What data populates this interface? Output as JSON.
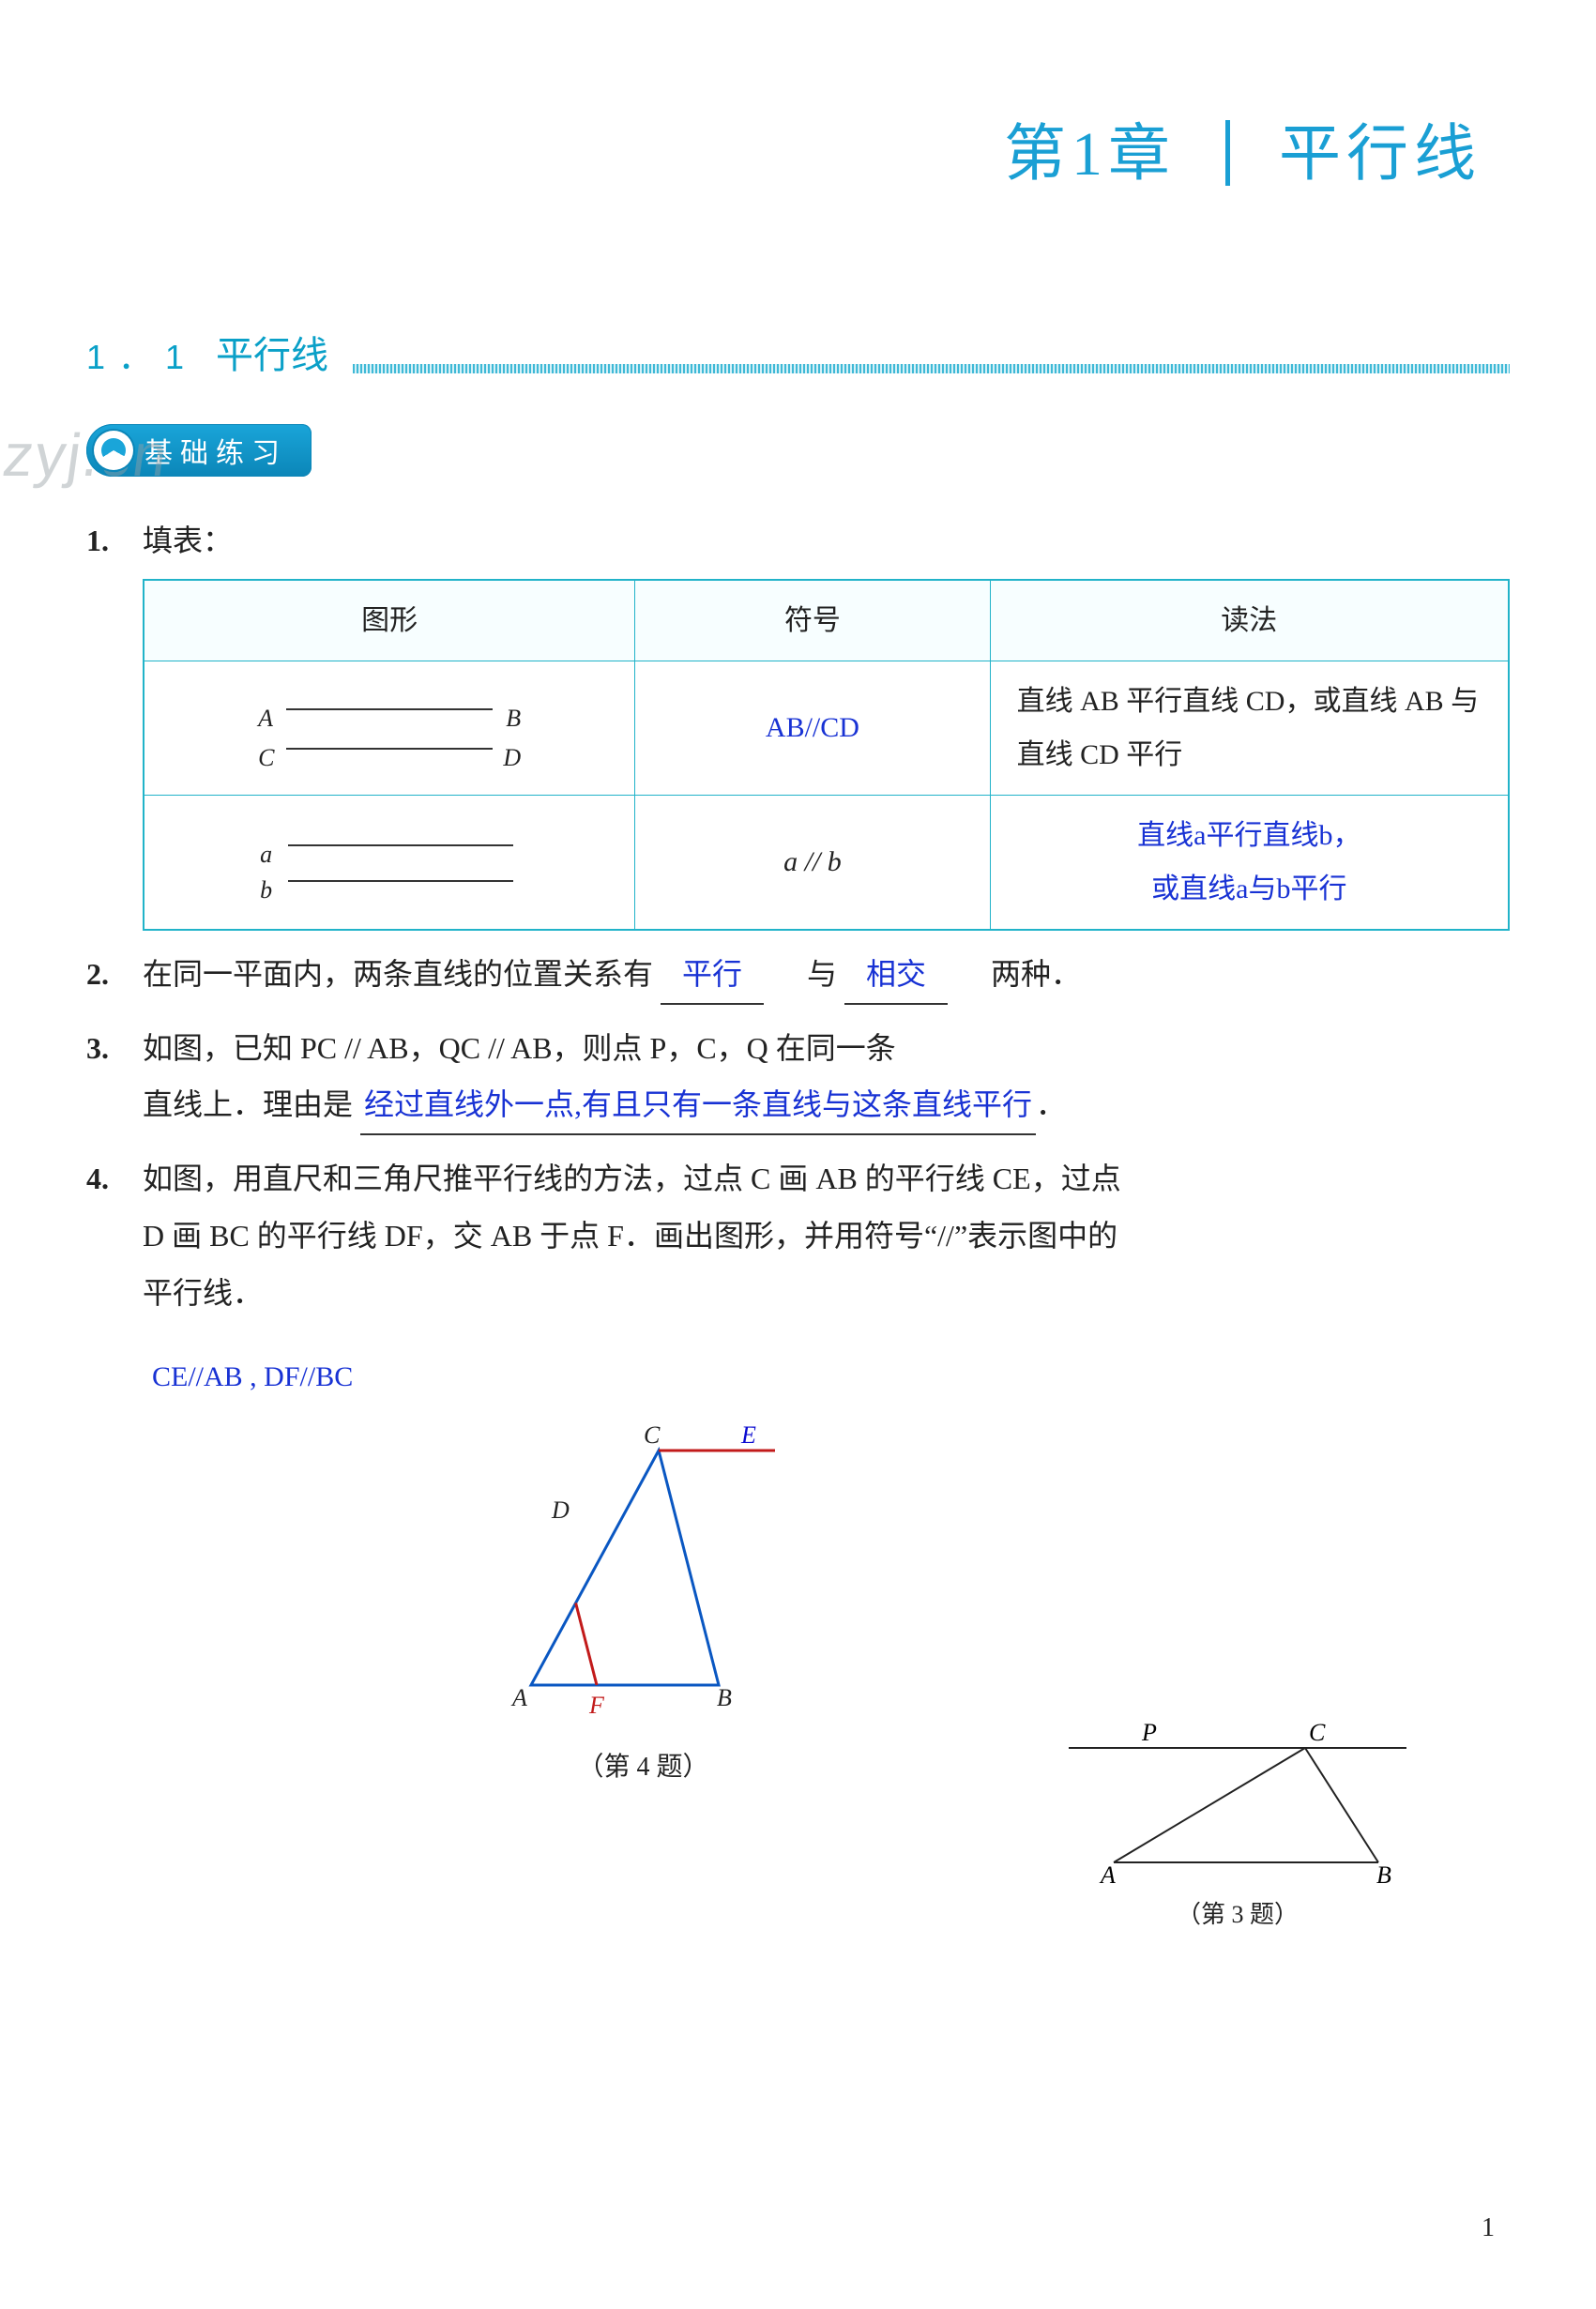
{
  "chapter": {
    "left": "第1章",
    "right": "平行线"
  },
  "section": {
    "num": "1．1",
    "title": "平行线"
  },
  "badge": {
    "label": "基础练习"
  },
  "watermark": "zyj.cn",
  "page_number": "1",
  "q1": {
    "num": "1.",
    "lead": "填表：",
    "table": {
      "headers": [
        "图形",
        "符号",
        "读法"
      ],
      "row1": {
        "fig": {
          "A": "A",
          "B": "B",
          "C": "C",
          "D": "D"
        },
        "symbol_answer": "AB//CD",
        "reading": "直线 AB 平行直线 CD，或直线 AB 与直线 CD 平行"
      },
      "row2": {
        "fig": {
          "a": "a",
          "b": "b"
        },
        "symbol": "a // b",
        "reading_answer_l1": "直线a平行直线b，",
        "reading_answer_l2": "或直线a与b平行"
      }
    }
  },
  "q2": {
    "num": "2.",
    "pre": "在同一平面内，两条直线的位置关系有",
    "blank1": "平行",
    "mid": "与",
    "blank2": "相交",
    "post": "两种．"
  },
  "q3": {
    "num": "3.",
    "line1": "如图，已知 PC // AB，QC // AB，则点 P，C，Q 在同一条",
    "line2_pre": "直线上．理由是",
    "blank": "经过直线外一点,有且只有一条直线与这条直线平行",
    "figure": {
      "labels": {
        "P": "P",
        "C": "C",
        "A": "A",
        "B": "B"
      },
      "caption": "（第 3 题）",
      "colors": {
        "stroke": "#222222"
      }
    }
  },
  "q4": {
    "num": "4.",
    "text": "如图，用直尺和三角尺推平行线的方法，过点 C 画 AB 的平行线 CE，过点 D 画 BC 的平行线 DF，交 AB 于点 F．画出图形，并用符号“//”表示图中的平行线．",
    "answer": "CE//AB , DF//BC",
    "figure": {
      "labels": {
        "A": "A",
        "B": "B",
        "C": "C",
        "D": "D",
        "E": "E",
        "F": "F"
      },
      "caption": "（第 4 题）",
      "colors": {
        "triangle": "#0a57c2",
        "red_seg": "#c21a1a",
        "label_black": "#222222",
        "label_blue": "#0a0ad0",
        "label_red": "#c21a1a"
      }
    }
  }
}
